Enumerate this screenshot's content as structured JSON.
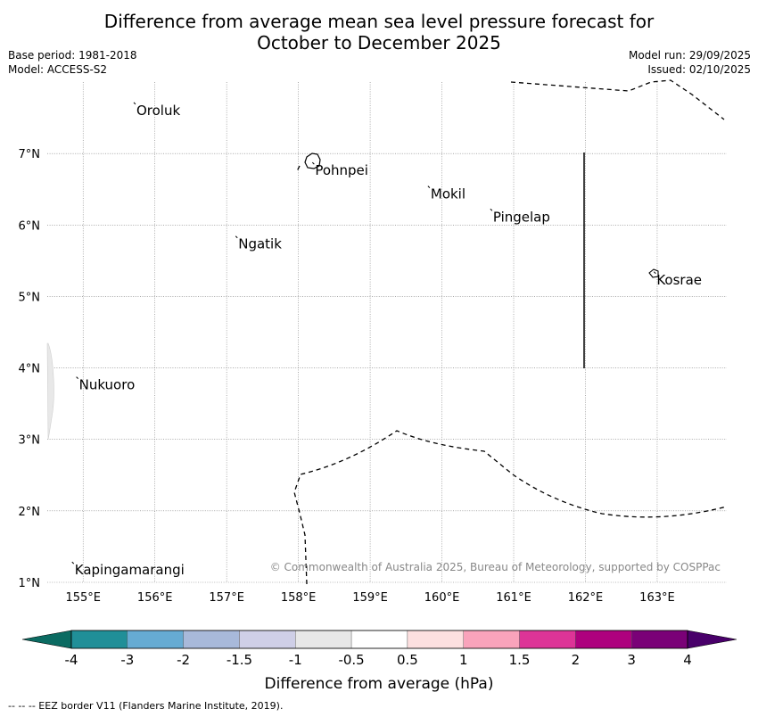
{
  "title": {
    "line1": "Difference from average mean sea level pressure forecast for",
    "line2": "October to December 2025"
  },
  "meta": {
    "base_period": "Base period: 1981-2018",
    "model": "Model: ACCESS-S2",
    "model_run": "Model run: 29/09/2025",
    "issued": "Issued: 02/10/2025"
  },
  "map": {
    "lat_range": [
      1,
      8
    ],
    "lon_range": [
      154.5,
      163.97
    ],
    "lat_labels": [
      "1°N",
      "2°N",
      "3°N",
      "4°N",
      "5°N",
      "6°N",
      "7°N"
    ],
    "lon_labels": [
      "155°E",
      "156°E",
      "157°E",
      "158°E",
      "159°E",
      "160°E",
      "161°E",
      "162°E",
      "163°E"
    ],
    "places": [
      {
        "name": "Oroluk",
        "lon": 155.73,
        "lat": 7.69
      },
      {
        "name": "Pohnpei",
        "lon": 158.22,
        "lat": 6.85
      },
      {
        "name": "Mokil",
        "lon": 159.83,
        "lat": 6.52
      },
      {
        "name": "Pingelap",
        "lon": 160.7,
        "lat": 6.2
      },
      {
        "name": "Ngatik",
        "lon": 157.15,
        "lat": 5.82
      },
      {
        "name": "Kosrae",
        "lon": 162.98,
        "lat": 5.32
      },
      {
        "name": "Nukuoro",
        "lon": 154.93,
        "lat": 3.85
      },
      {
        "name": "Kapingamarangi",
        "lon": 154.87,
        "lat": 1.26
      }
    ],
    "copyright": "© Commonwealth of Australia 2025, Bureau of Meteorology, supported by COSPPac"
  },
  "legend": {
    "title": "Difference from average (hPa)",
    "ticks": [
      "-4",
      "-3",
      "-2",
      "-1.5",
      "-1",
      "-0.5",
      "0.5",
      "1",
      "1.5",
      "2",
      "3",
      "4"
    ],
    "colors": [
      "#208f98",
      "#66abd3",
      "#a8b9da",
      "#cfcfe7",
      "#e8e8e8",
      "#ffffff",
      "#fde0e0",
      "#f9a3bb",
      "#dd3497",
      "#ae017e",
      "#7a0177"
    ],
    "under_color": "#0b6b62",
    "over_color": "#49006a"
  },
  "footer": "--  --  -- EEZ border V11 (Flanders Marine Institute, 2019)."
}
